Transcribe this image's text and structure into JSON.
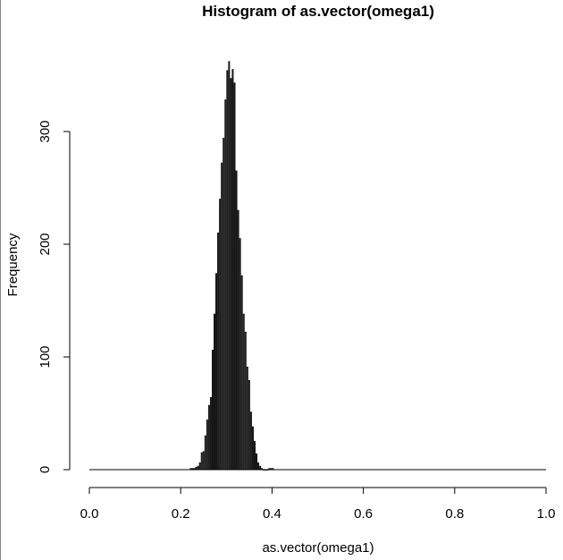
{
  "chart_data": {
    "type": "bar",
    "title": "Histogram of as.vector(omega1)",
    "xlabel": "as.vector(omega1)",
    "ylabel": "Frequency",
    "xlim": [
      0,
      1
    ],
    "ylim": [
      0,
      362
    ],
    "grid": false,
    "bin_width": 0.002,
    "x_ticks": [
      "0.0",
      "0.2",
      "0.4",
      "0.6",
      "0.8",
      "1.0"
    ],
    "y_ticks": [
      "0",
      "100",
      "200",
      "300"
    ],
    "bins": [
      {
        "x": 0.222,
        "count": 1
      },
      {
        "x": 0.226,
        "count": 1
      },
      {
        "x": 0.23,
        "count": 1
      },
      {
        "x": 0.234,
        "count": 2
      },
      {
        "x": 0.238,
        "count": 3
      },
      {
        "x": 0.242,
        "count": 6
      },
      {
        "x": 0.246,
        "count": 15
      },
      {
        "x": 0.25,
        "count": 16
      },
      {
        "x": 0.254,
        "count": 30
      },
      {
        "x": 0.258,
        "count": 44
      },
      {
        "x": 0.262,
        "count": 57
      },
      {
        "x": 0.266,
        "count": 64
      },
      {
        "x": 0.27,
        "count": 106
      },
      {
        "x": 0.274,
        "count": 138
      },
      {
        "x": 0.278,
        "count": 174
      },
      {
        "x": 0.282,
        "count": 210
      },
      {
        "x": 0.286,
        "count": 240
      },
      {
        "x": 0.29,
        "count": 272
      },
      {
        "x": 0.294,
        "count": 294
      },
      {
        "x": 0.298,
        "count": 328
      },
      {
        "x": 0.302,
        "count": 354
      },
      {
        "x": 0.306,
        "count": 362
      },
      {
        "x": 0.31,
        "count": 347
      },
      {
        "x": 0.314,
        "count": 355
      },
      {
        "x": 0.318,
        "count": 343
      },
      {
        "x": 0.322,
        "count": 265
      },
      {
        "x": 0.326,
        "count": 230
      },
      {
        "x": 0.33,
        "count": 205
      },
      {
        "x": 0.334,
        "count": 172
      },
      {
        "x": 0.338,
        "count": 138
      },
      {
        "x": 0.342,
        "count": 122
      },
      {
        "x": 0.346,
        "count": 91
      },
      {
        "x": 0.35,
        "count": 79
      },
      {
        "x": 0.354,
        "count": 51
      },
      {
        "x": 0.358,
        "count": 38
      },
      {
        "x": 0.362,
        "count": 25
      },
      {
        "x": 0.366,
        "count": 14
      },
      {
        "x": 0.37,
        "count": 6
      },
      {
        "x": 0.374,
        "count": 3
      },
      {
        "x": 0.378,
        "count": 1
      },
      {
        "x": 0.382,
        "count": 0
      },
      {
        "x": 0.386,
        "count": 0
      },
      {
        "x": 0.39,
        "count": 0
      },
      {
        "x": 0.394,
        "count": 1
      },
      {
        "x": 0.398,
        "count": 1
      },
      {
        "x": 0.402,
        "count": 1
      }
    ]
  }
}
